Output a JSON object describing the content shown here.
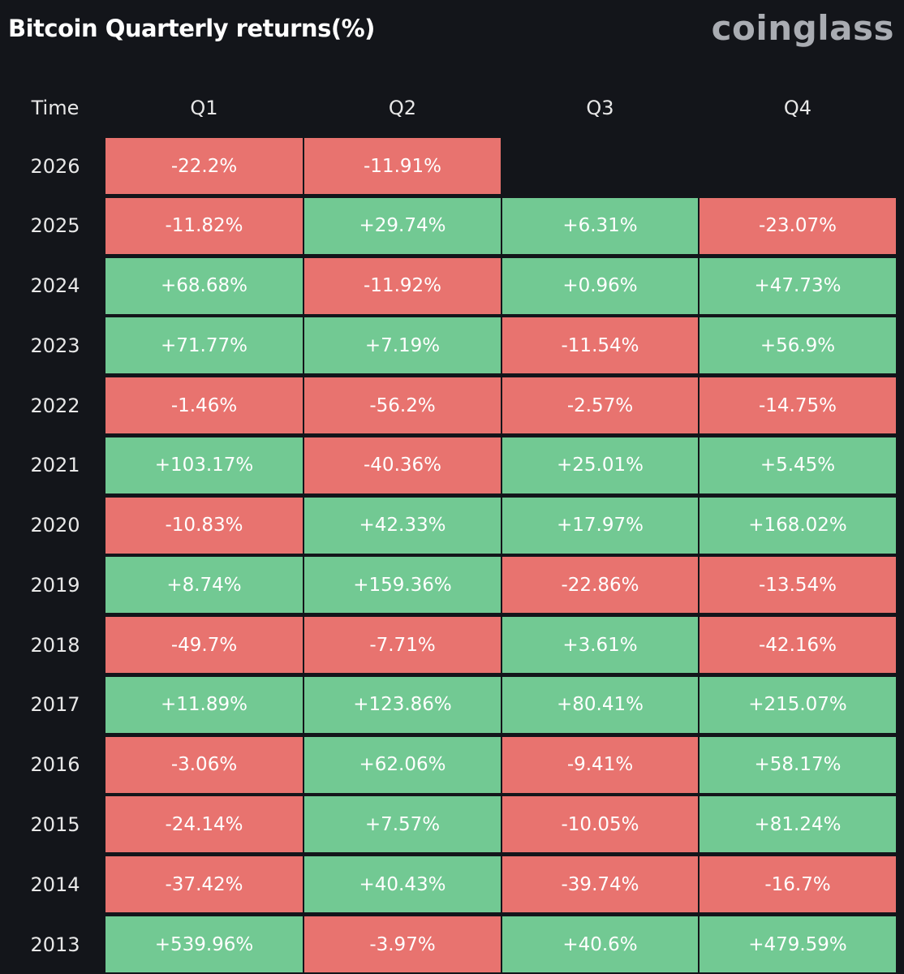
{
  "header": {
    "title": "Bitcoin Quarterly returns(%)",
    "brand": "coinglass"
  },
  "table": {
    "columns": [
      "Time",
      "Q1",
      "Q2",
      "Q3",
      "Q4"
    ],
    "rows": [
      [
        "2026",
        "-22.2%",
        "-11.91%"
      ],
      [
        "2025",
        "-11.82%",
        "+29.74%",
        "+6.31%",
        "-23.07%"
      ],
      [
        "2024",
        "+68.68%",
        "-11.92%",
        "+0.96%",
        "+47.73%"
      ],
      [
        "2023",
        "+71.77%",
        "+7.19%",
        "-11.54%",
        "+56.9%"
      ],
      [
        "2022",
        "-1.46%",
        "-56.2%",
        "-2.57%",
        "-14.75%"
      ],
      [
        "2021",
        "+103.17%",
        "-40.36%",
        "+25.01%",
        "+5.45%"
      ],
      [
        "2020",
        "-10.83%",
        "+42.33%",
        "+17.97%",
        "+168.02%"
      ],
      [
        "2019",
        "+8.74%",
        "+159.36%",
        "-22.86%",
        "-13.54%"
      ],
      [
        "2018",
        "-49.7%",
        "-7.71%",
        "+3.61%",
        "-42.16%"
      ],
      [
        "2017",
        "+11.89%",
        "+123.86%",
        "+80.41%",
        "+215.07%"
      ],
      [
        "2016",
        "-3.06%",
        "+62.06%",
        "-9.41%",
        "+58.17%"
      ],
      [
        "2015",
        "-24.14%",
        "+7.57%",
        "-10.05%",
        "+81.24%"
      ],
      [
        "2014",
        "-37.42%",
        "+40.43%",
        "-39.74%",
        "-16.7%"
      ],
      [
        "2013",
        "+539.96%",
        "-3.97%",
        "+40.6%",
        "+479.59%"
      ]
    ]
  }
}
